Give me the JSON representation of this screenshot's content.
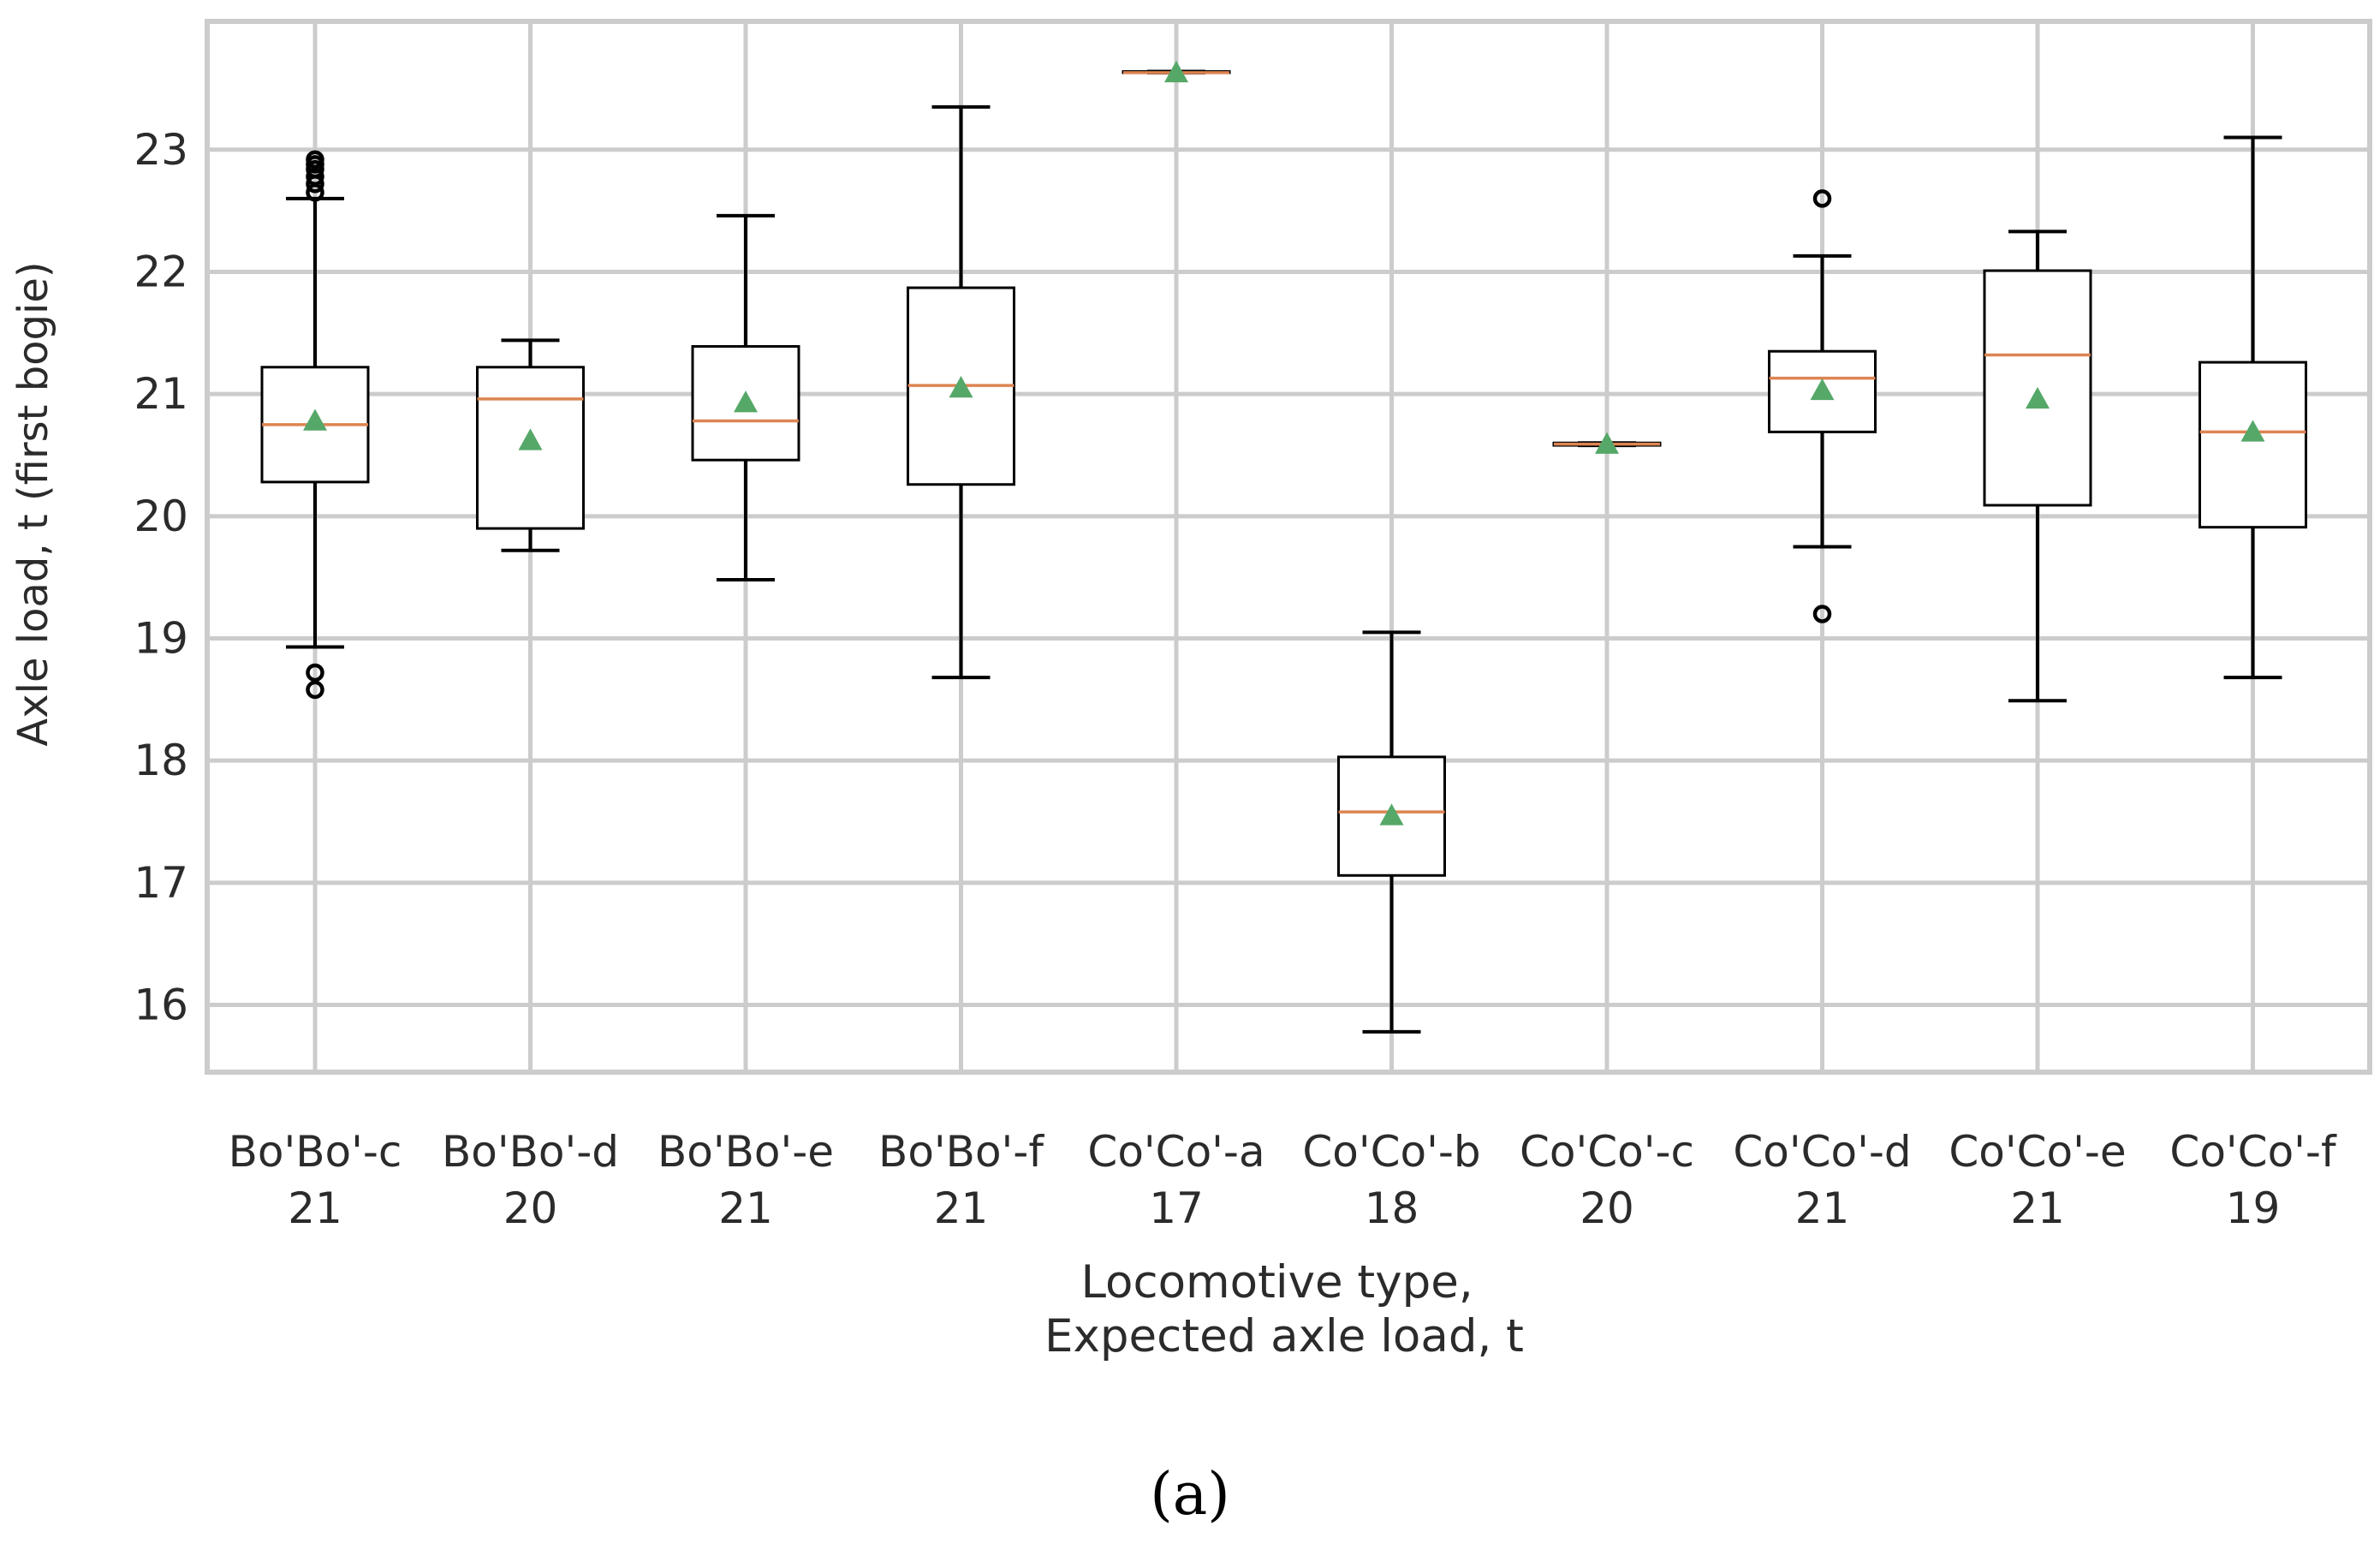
{
  "chart_data": {
    "type": "boxplot",
    "title": "",
    "xlabel": [
      "Locomotive type,",
      "Expected axle load, t"
    ],
    "ylabel": "Axle load, t (first bogie)",
    "ylim": [
      15.45,
      24.05
    ],
    "yticks": [
      16,
      17,
      18,
      19,
      20,
      21,
      22,
      23
    ],
    "grid": true,
    "legend": "none",
    "colors": {
      "median": "#dd8452",
      "mean_marker": "#55a868",
      "box": "#000000",
      "grid": "#cccccc",
      "text": "#2b2b2b"
    },
    "categories": [
      {
        "name": "Bo'Bo'-c",
        "expected": "21",
        "whisker_low": 18.93,
        "q1": 20.28,
        "median": 20.75,
        "q3": 21.22,
        "whisker_high": 22.6,
        "mean": 20.78,
        "outliers": [
          18.72,
          18.58,
          22.65,
          22.72,
          22.78,
          22.84,
          22.88,
          22.92
        ]
      },
      {
        "name": "Bo'Bo'-d",
        "expected": "20",
        "whisker_low": 19.72,
        "q1": 19.9,
        "median": 20.96,
        "q3": 21.22,
        "whisker_high": 21.44,
        "mean": 20.62,
        "outliers": []
      },
      {
        "name": "Bo'Bo'-e",
        "expected": "21",
        "whisker_low": 19.48,
        "q1": 20.46,
        "median": 20.78,
        "q3": 21.39,
        "whisker_high": 22.46,
        "mean": 20.93,
        "outliers": []
      },
      {
        "name": "Bo'Bo'-f",
        "expected": "21",
        "whisker_low": 18.68,
        "q1": 20.26,
        "median": 21.07,
        "q3": 21.87,
        "whisker_high": 23.35,
        "mean": 21.05,
        "outliers": []
      },
      {
        "name": "Co'Co'-a",
        "expected": "17",
        "whisker_low": 23.63,
        "q1": 23.63,
        "median": 23.63,
        "q3": 23.64,
        "whisker_high": 23.64,
        "mean": 23.63,
        "outliers": []
      },
      {
        "name": "Co'Co'-b",
        "expected": "18",
        "whisker_low": 15.78,
        "q1": 17.06,
        "median": 17.58,
        "q3": 18.03,
        "whisker_high": 19.05,
        "mean": 17.55,
        "outliers": []
      },
      {
        "name": "Co'Co'-c",
        "expected": "20",
        "whisker_low": 20.58,
        "q1": 20.58,
        "median": 20.59,
        "q3": 20.6,
        "whisker_high": 20.6,
        "mean": 20.59,
        "outliers": []
      },
      {
        "name": "Co'Co'-d",
        "expected": "21",
        "whisker_low": 19.75,
        "q1": 20.69,
        "median": 21.13,
        "q3": 21.35,
        "whisker_high": 22.13,
        "mean": 21.03,
        "outliers": [
          22.6,
          19.2
        ]
      },
      {
        "name": "Co'Co'-e",
        "expected": "21",
        "whisker_low": 18.49,
        "q1": 20.09,
        "median": 21.32,
        "q3": 22.01,
        "whisker_high": 22.33,
        "mean": 20.96,
        "outliers": []
      },
      {
        "name": "Co'Co'-f",
        "expected": "19",
        "whisker_low": 18.68,
        "q1": 19.91,
        "median": 20.69,
        "q3": 21.26,
        "whisker_high": 23.1,
        "mean": 20.69,
        "outliers": []
      }
    ]
  },
  "panel_label": "(a)"
}
